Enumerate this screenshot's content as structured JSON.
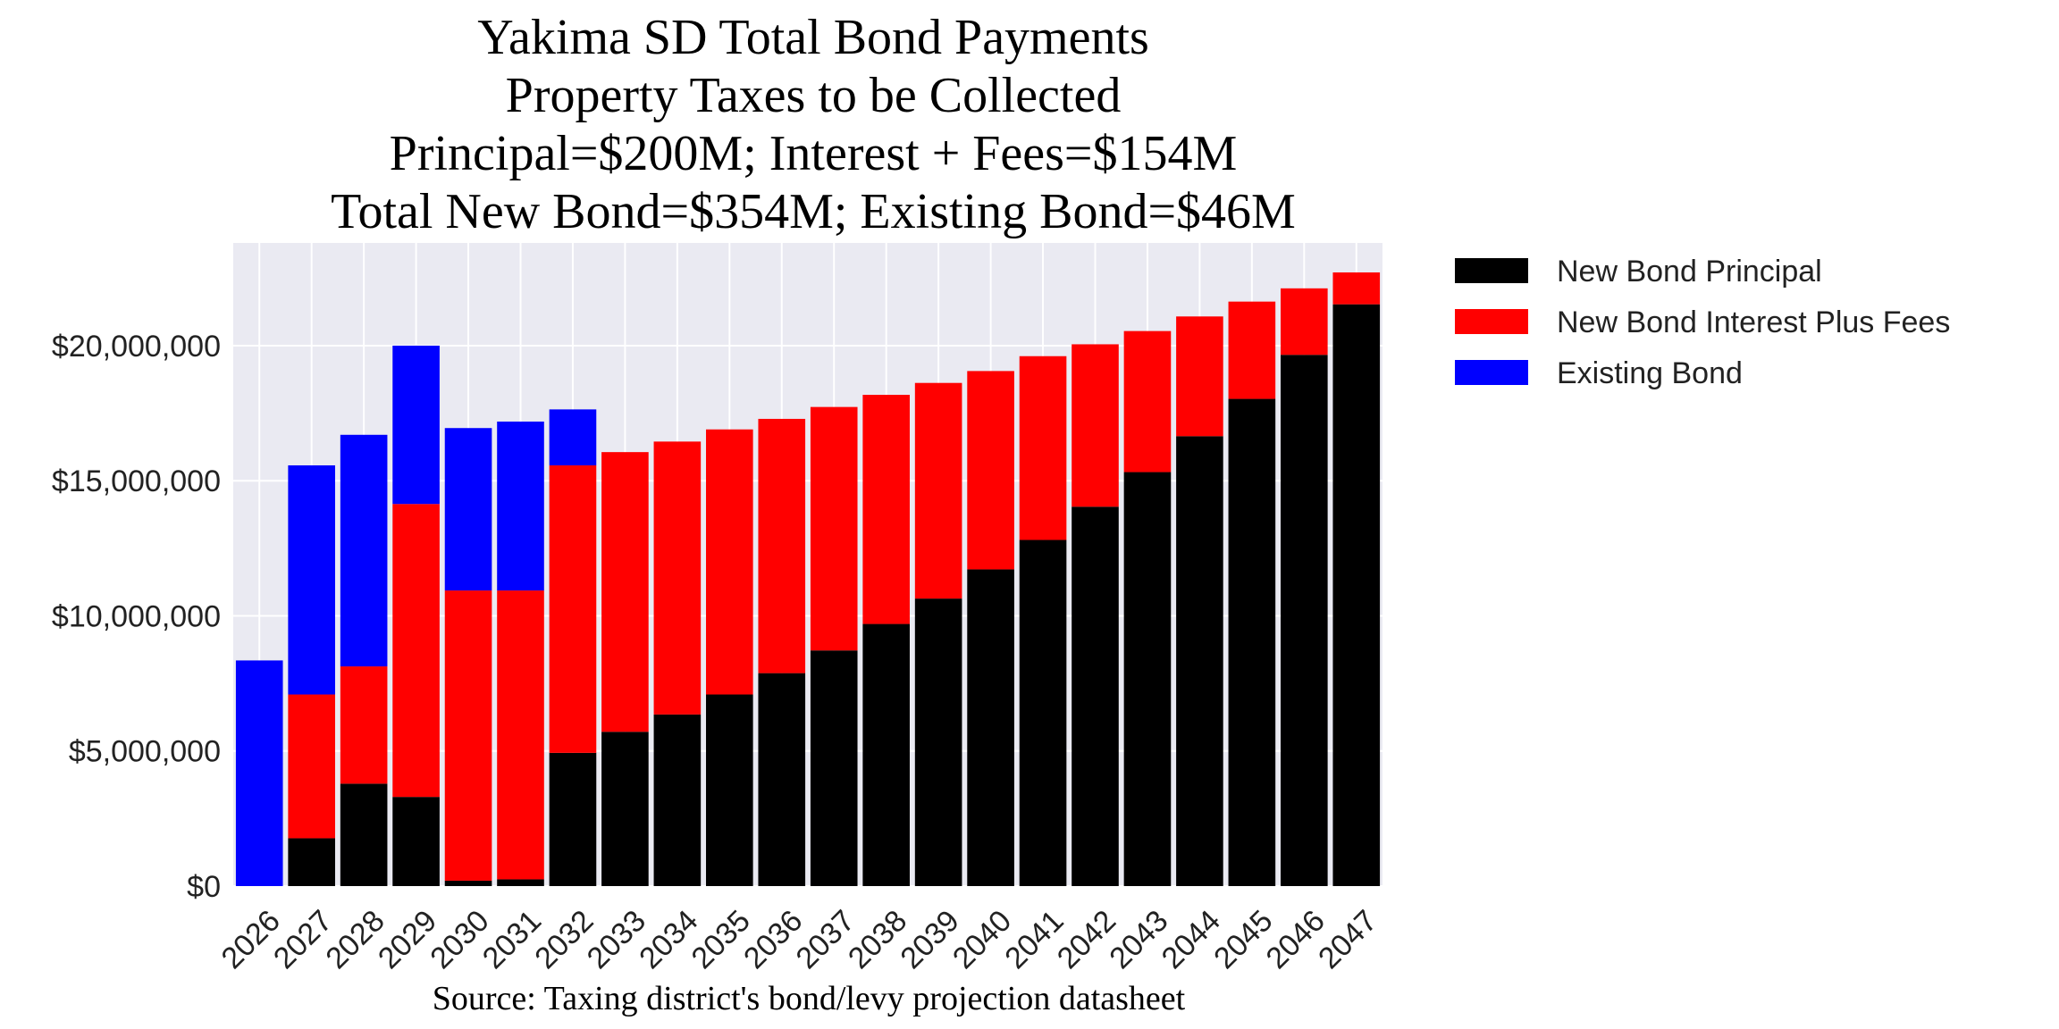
{
  "chart_data": {
    "type": "stacked_bar",
    "title": [
      "Yakima SD Total Bond Payments",
      "Property Taxes to be Collected",
      "Principal=$200M; Interest + Fees=$154M",
      "Total New Bond=$354M; Existing Bond=$46M"
    ],
    "caption": "Source: Taxing district's bond/levy projection datasheet",
    "categories": [
      "2026",
      "2027",
      "2028",
      "2029",
      "2030",
      "2031",
      "2032",
      "2033",
      "2034",
      "2035",
      "2036",
      "2037",
      "2038",
      "2039",
      "2040",
      "2041",
      "2042",
      "2043",
      "2044",
      "2045",
      "2046",
      "2047"
    ],
    "series": [
      {
        "name": "New Bond Principal",
        "color": "#000000",
        "values": [
          0,
          1770000,
          3790000,
          3300000,
          200000,
          250000,
          4930000,
          5710000,
          6350000,
          7090000,
          7880000,
          8720000,
          9700000,
          10640000,
          11720000,
          12810000,
          14040000,
          15320000,
          16650000,
          18030000,
          19660000,
          21530000
        ]
      },
      {
        "name": "New Bond Interest Plus Fees",
        "color": "#ff0000",
        "values": [
          0,
          5320000,
          4340000,
          10840000,
          10740000,
          10690000,
          10640000,
          10350000,
          10100000,
          9810000,
          9410000,
          9010000,
          8480000,
          7980000,
          7340000,
          6800000,
          6010000,
          5220000,
          4430000,
          3600000,
          2460000,
          1180000
        ]
      },
      {
        "name": "Existing Bond",
        "color": "#0000ff",
        "values": [
          8350000,
          8480000,
          8570000,
          5860000,
          6010000,
          6250000,
          2070000,
          0,
          0,
          0,
          0,
          0,
          0,
          0,
          0,
          0,
          0,
          0,
          0,
          0,
          0,
          0
        ]
      }
    ],
    "ylim": [
      0,
      23800000
    ],
    "yticks": [
      {
        "value": 0,
        "label": "$0"
      },
      {
        "value": 5000000,
        "label": "$5,000,000"
      },
      {
        "value": 10000000,
        "label": "$10,000,000"
      },
      {
        "value": 15000000,
        "label": "$15,000,000"
      },
      {
        "value": 20000000,
        "label": "$20,000,000"
      }
    ],
    "grid": true,
    "legend": "outside-right"
  }
}
